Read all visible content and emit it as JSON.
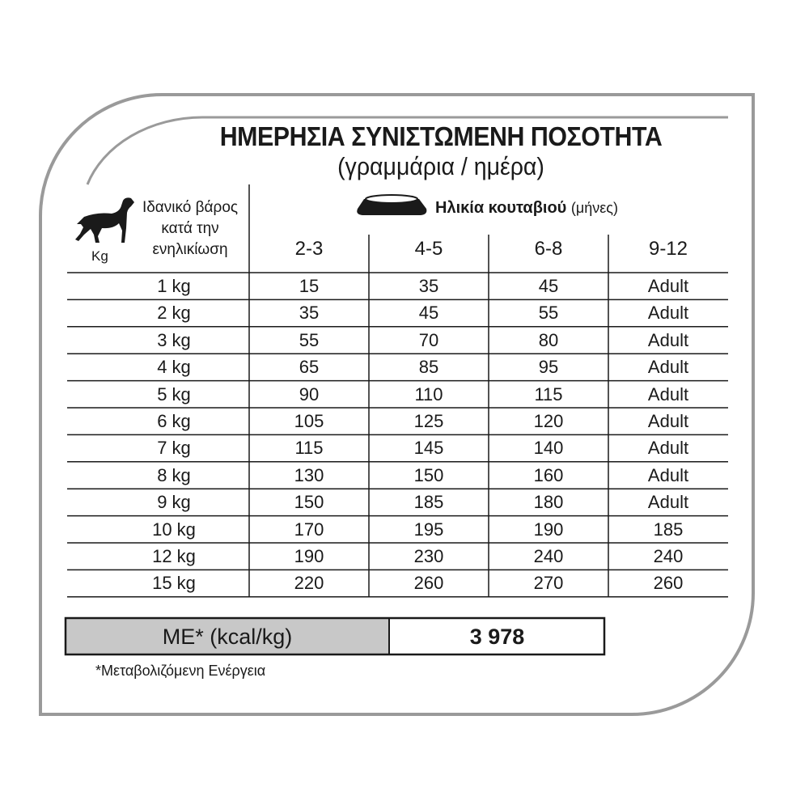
{
  "title": "ΗΜΕΡΗΣΙΑ ΣΥΝΙΣΤΩΜΕΝΗ ΠΟΣΟΤΗΤΑ",
  "subtitle": "(γραμμάρια / ημέρα)",
  "weight_header": {
    "lines": [
      "Ιδανικό βάρος",
      "κατά την",
      "ενηλικίωση"
    ],
    "unit": "Kg",
    "icon": "dog-icon"
  },
  "age_header": {
    "label": "Ηλικία κουταβιού",
    "unit": "(μήνες)",
    "icon": "bowl-icon"
  },
  "columns": [
    "2-3",
    "4-5",
    "6-8",
    "9-12"
  ],
  "rows": [
    {
      "weight": "1 kg",
      "values": [
        "15",
        "35",
        "45",
        "Adult"
      ]
    },
    {
      "weight": "2 kg",
      "values": [
        "35",
        "45",
        "55",
        "Adult"
      ]
    },
    {
      "weight": "3 kg",
      "values": [
        "55",
        "70",
        "80",
        "Adult"
      ]
    },
    {
      "weight": "4 kg",
      "values": [
        "65",
        "85",
        "95",
        "Adult"
      ]
    },
    {
      "weight": "5 kg",
      "values": [
        "90",
        "110",
        "115",
        "Adult"
      ]
    },
    {
      "weight": "6 kg",
      "values": [
        "105",
        "125",
        "120",
        "Adult"
      ]
    },
    {
      "weight": "7 kg",
      "values": [
        "115",
        "145",
        "140",
        "Adult"
      ]
    },
    {
      "weight": "8 kg",
      "values": [
        "130",
        "150",
        "160",
        "Adult"
      ]
    },
    {
      "weight": "9 kg",
      "values": [
        "150",
        "185",
        "180",
        "Adult"
      ]
    },
    {
      "weight": "10 kg",
      "values": [
        "170",
        "195",
        "190",
        "185"
      ]
    },
    {
      "weight": "12 kg",
      "values": [
        "190",
        "230",
        "240",
        "240"
      ]
    },
    {
      "weight": "15 kg",
      "values": [
        "220",
        "260",
        "270",
        "260"
      ]
    }
  ],
  "energy": {
    "label": "ME* (kcal/kg)",
    "value": "3 978"
  },
  "footnote": "*Μεταβολιζόμενη Ενέργεια",
  "colors": {
    "frame": "#9a9a9a",
    "me_label_bg": "#c8c8c8",
    "text": "#1a1a1a"
  }
}
